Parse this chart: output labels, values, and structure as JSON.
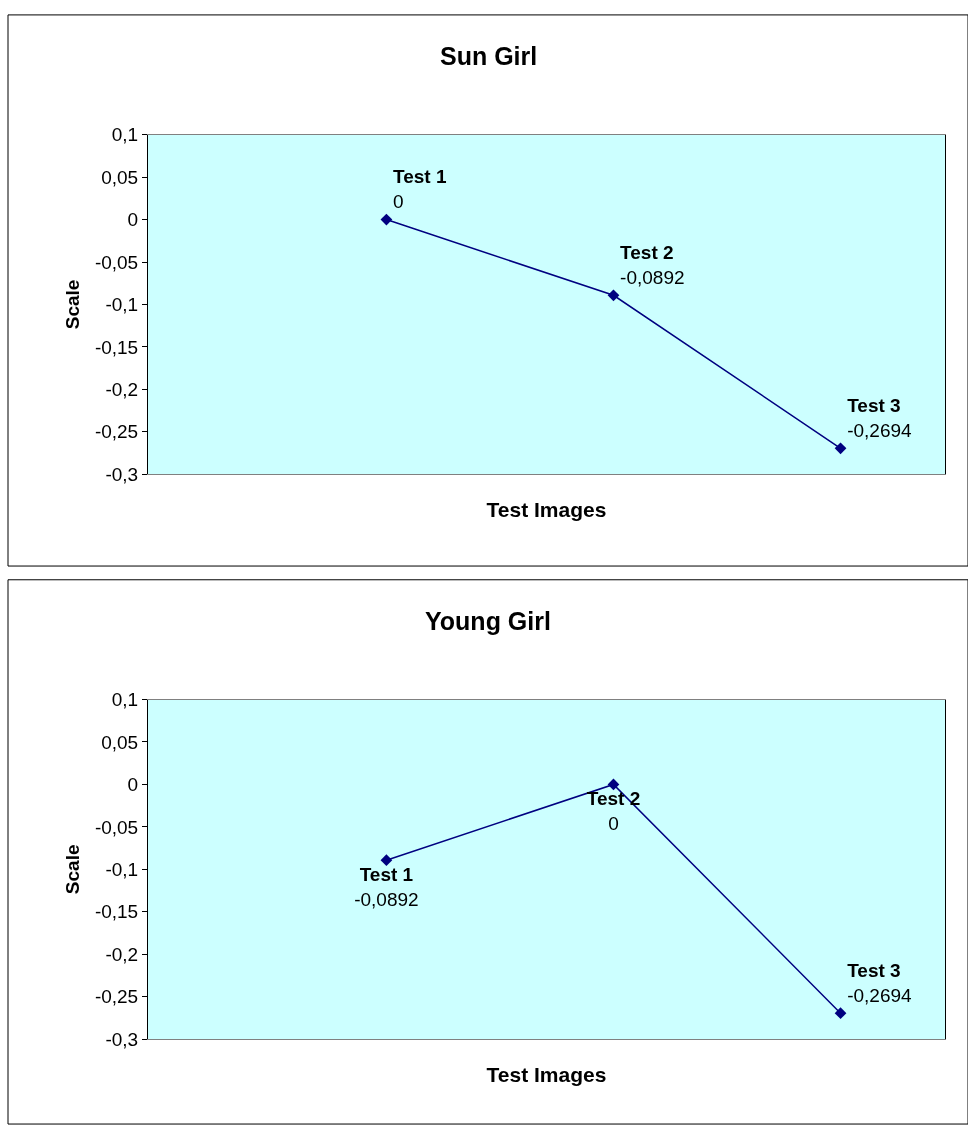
{
  "chart_data": [
    {
      "type": "line",
      "title": "Sun Girl",
      "xlabel": "Test Images",
      "ylabel": "Scale",
      "categories": [
        "Test 1",
        "Test 2",
        "Test 3"
      ],
      "values": [
        0,
        -0.0892,
        -0.2694
      ],
      "value_labels": [
        "0",
        "-0,0892",
        "-0,2694"
      ],
      "color": "#000080",
      "marker": "diamond",
      "line_style": "solid",
      "ylim": [
        -0.3,
        0.1
      ],
      "yticks": [
        {
          "value": 0.1,
          "label": "0,1"
        },
        {
          "value": 0.05,
          "label": "0,05"
        },
        0,
        {
          "value": -0.05,
          "label": "-0,05"
        },
        {
          "value": -0.1,
          "label": "-0,1"
        },
        {
          "value": -0.15,
          "label": "-0,15"
        },
        {
          "value": -0.2,
          "label": "-0,2"
        },
        {
          "value": -0.25,
          "label": "-0,25"
        },
        {
          "value": -0.3,
          "label": "-0,3"
        }
      ],
      "grid": false,
      "legend": false,
      "tick_labels": "y"
    },
    {
      "type": "line",
      "title": "Young Girl",
      "xlabel": "Test Images",
      "ylabel": "Scale",
      "categories": [
        "Test 1",
        "Test 2",
        "Test 3"
      ],
      "values": [
        -0.0892,
        0,
        -0.2694
      ],
      "value_labels": [
        "-0,0892",
        "0",
        "-0,2694"
      ],
      "color": "#000080",
      "marker": "diamond",
      "line_style": "solid",
      "ylim": [
        -0.3,
        0.1
      ],
      "yticks": [
        {
          "value": 0.1,
          "label": "0,1"
        },
        {
          "value": 0.05,
          "label": "0,05"
        },
        0,
        {
          "value": -0.05,
          "label": "-0,05"
        },
        {
          "value": -0.1,
          "label": "-0,1"
        },
        {
          "value": -0.15,
          "label": "-0,15"
        },
        {
          "value": -0.2,
          "label": "-0,2"
        },
        {
          "value": -0.25,
          "label": "-0,25"
        },
        {
          "value": -0.3,
          "label": "-0,3"
        }
      ],
      "grid": false,
      "legend": false,
      "tick_labels": "y"
    }
  ]
}
